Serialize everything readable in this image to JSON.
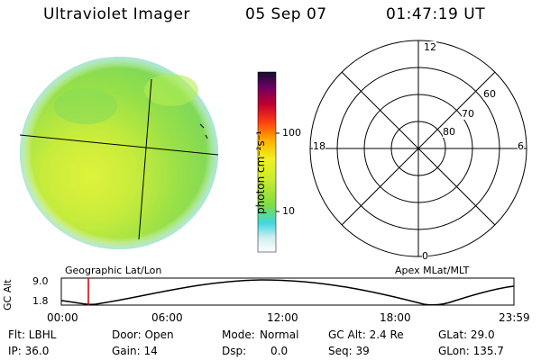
{
  "header": {
    "title": "Ultraviolet Imager",
    "date": "05 Sep 07",
    "time": "01:47:19 UT"
  },
  "colorbar": {
    "label": "photon cm⁻²s⁻¹",
    "ticks": [
      "100",
      "10"
    ],
    "scale": "log"
  },
  "labels": {
    "geo": "Geographic Lat/Lon",
    "apex": "Apex MLat/MLT"
  },
  "polar": {
    "mlt_labels": [
      "12",
      "18",
      "6",
      "0"
    ],
    "lat_labels": [
      "60",
      "70",
      "80"
    ]
  },
  "orbit": {
    "ylabel": "GC Alt",
    "yticks": [
      "9.0",
      "1.8"
    ],
    "xticks": [
      "00:00",
      "06:00",
      "12:00",
      "18:00",
      "23:59"
    ],
    "marker_time": "01:47"
  },
  "info": {
    "flt": "Flt: LBHL",
    "ip": "IP: 36.0",
    "door": "Door: Open",
    "gain": "Gain: 14",
    "mode_label": "Mode:",
    "mode_value": "Normal",
    "dsp_label": "Dsp:",
    "dsp_value": "0.0",
    "gcalt": "GC Alt: 2.4 Re",
    "seq": "Seq: 39",
    "glat": "GLat: 29.0",
    "glon": "GLon: 135.7"
  },
  "colors": {
    "disk_green": "#8ee04a",
    "disk_yellow": "#d8f03a",
    "disk_cyan": "#bfeef6",
    "marker": "#cc0000"
  }
}
